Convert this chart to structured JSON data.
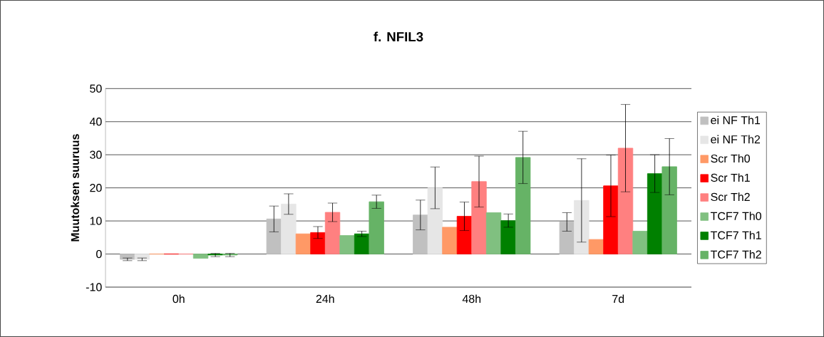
{
  "chart_data": {
    "type": "bar",
    "title": "f. NFIL3",
    "ylabel": "Muutoksen suuruus",
    "categories": [
      "0h",
      "24h",
      "48h",
      "7d"
    ],
    "series": [
      {
        "name": "ei NF Th1",
        "color": "#c0c0c0",
        "values": [
          -1.6,
          10.6,
          11.8,
          9.7
        ],
        "errors": [
          0.4,
          3.9,
          4.5,
          2.8
        ]
      },
      {
        "name": "ei NF Th2",
        "color": "#e6e6e6",
        "values": [
          -1.6,
          15.1,
          20,
          16.2
        ],
        "errors": [
          0.4,
          3.1,
          6.3,
          12.6
        ]
      },
      {
        "name": "Scr Th0",
        "color": "#ff9966",
        "values": [
          0,
          6.1,
          8.1,
          4.4
        ],
        "errors": [
          null,
          null,
          null,
          null
        ]
      },
      {
        "name": "Scr Th1",
        "color": "#ff0000",
        "values": [
          0,
          6.5,
          11.4,
          20.6
        ],
        "errors": [
          null,
          1.8,
          4.3,
          9.3
        ]
      },
      {
        "name": "Scr Th2",
        "color": "#ff8080",
        "values": [
          0,
          12.6,
          21.9,
          32
        ],
        "errors": [
          null,
          2.8,
          7.7,
          13.2
        ]
      },
      {
        "name": "TCF7 Th0",
        "color": "#80c080",
        "values": [
          -1.3,
          5.6,
          12.5,
          6.9
        ],
        "errors": [
          null,
          null,
          null,
          null
        ]
      },
      {
        "name": "TCF7 Th1",
        "color": "#008000",
        "values": [
          -0.3,
          6.1,
          10.1,
          24.3
        ],
        "errors": [
          0.5,
          0.8,
          2,
          5.7
        ]
      },
      {
        "name": "TCF7 Th2",
        "color": "#66b366",
        "values": [
          -0.3,
          15.8,
          29.2,
          26.4
        ],
        "errors": [
          0.5,
          2,
          7.9,
          8.5
        ]
      }
    ],
    "ylim": [
      -10,
      50
    ],
    "yticks": [
      -10,
      0,
      10,
      20,
      30,
      40,
      50
    ],
    "grid": "y",
    "legend": "right"
  }
}
